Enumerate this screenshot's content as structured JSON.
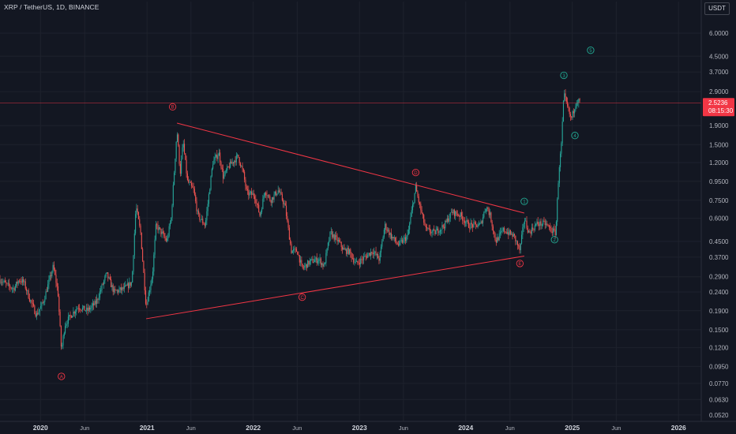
{
  "header": {
    "title": "XRP / TetherUS, 1D, BINANCE",
    "currency": "USDT"
  },
  "colors": {
    "background": "#131722",
    "grid": "#1e222d",
    "bull_candle": "#26a69a",
    "bear_candle": "#ef5350",
    "trendline": "#f23645",
    "wave_abc": "#f23645",
    "wave_impulse": "#22ab94",
    "price_line": "#f23645",
    "axis_text": "#b2b5be"
  },
  "chart_data": {
    "type": "candlestick",
    "timeframe": "1D",
    "scale": "log",
    "y_axis": {
      "ticks": [
        "6.0000",
        "4.5000",
        "3.7000",
        "2.9000",
        "1.9000",
        "1.5000",
        "1.2000",
        "0.9500",
        "0.7500",
        "0.6000",
        "0.4500",
        "0.3700",
        "0.2900",
        "0.2400",
        "0.1900",
        "0.1500",
        "0.1200",
        "0.0950",
        "0.0770",
        "0.0630",
        "0.0520"
      ],
      "range": [
        0.048,
        7.3
      ]
    },
    "x_axis": {
      "labels": [
        "2020",
        "Jun",
        "2021",
        "Jun",
        "2022",
        "Jun",
        "2023",
        "Jun",
        "2024",
        "Jun",
        "2025",
        "Jun",
        "2026"
      ],
      "range": [
        "2019-08-15",
        "2026-03-20"
      ]
    },
    "current_price": {
      "value": "2.5236",
      "countdown": "08:15:30"
    },
    "price_path": [
      [
        "2019-08-15",
        0.28
      ],
      [
        "2019-09-10",
        0.26
      ],
      [
        "2019-10-01",
        0.25
      ],
      [
        "2019-10-20",
        0.28
      ],
      [
        "2019-11-05",
        0.27
      ],
      [
        "2019-11-25",
        0.22
      ],
      [
        "2019-12-18",
        0.18
      ],
      [
        "2020-01-10",
        0.21
      ],
      [
        "2020-02-14",
        0.33
      ],
      [
        "2020-03-01",
        0.24
      ],
      [
        "2020-03-13",
        0.115
      ],
      [
        "2020-03-25",
        0.16
      ],
      [
        "2020-04-15",
        0.18
      ],
      [
        "2020-05-10",
        0.2
      ],
      [
        "2020-06-10",
        0.19
      ],
      [
        "2020-07-10",
        0.21
      ],
      [
        "2020-08-15",
        0.3
      ],
      [
        "2020-09-10",
        0.24
      ],
      [
        "2020-10-15",
        0.25
      ],
      [
        "2020-11-10",
        0.27
      ],
      [
        "2020-11-24",
        0.7
      ],
      [
        "2020-12-10",
        0.5
      ],
      [
        "2020-12-29",
        0.2
      ],
      [
        "2021-01-20",
        0.3
      ],
      [
        "2021-02-01",
        0.55
      ],
      [
        "2021-02-20",
        0.5
      ],
      [
        "2021-03-10",
        0.45
      ],
      [
        "2021-03-25",
        0.6
      ],
      [
        "2021-04-14",
        1.8
      ],
      [
        "2021-04-25",
        1.05
      ],
      [
        "2021-05-05",
        1.55
      ],
      [
        "2021-05-20",
        0.95
      ],
      [
        "2021-06-10",
        0.85
      ],
      [
        "2021-06-25",
        0.62
      ],
      [
        "2021-07-20",
        0.55
      ],
      [
        "2021-08-15",
        1.2
      ],
      [
        "2021-09-05",
        1.35
      ],
      [
        "2021-09-20",
        1.0
      ],
      [
        "2021-10-10",
        1.15
      ],
      [
        "2021-11-10",
        1.3
      ],
      [
        "2021-11-28",
        1.05
      ],
      [
        "2021-12-10",
        0.82
      ],
      [
        "2022-01-05",
        0.8
      ],
      [
        "2022-01-24",
        0.62
      ],
      [
        "2022-02-10",
        0.85
      ],
      [
        "2022-03-01",
        0.75
      ],
      [
        "2022-03-28",
        0.85
      ],
      [
        "2022-04-20",
        0.7
      ],
      [
        "2022-05-12",
        0.4
      ],
      [
        "2022-06-01",
        0.4
      ],
      [
        "2022-06-18",
        0.32
      ],
      [
        "2022-07-15",
        0.35
      ],
      [
        "2022-08-15",
        0.36
      ],
      [
        "2022-09-01",
        0.33
      ],
      [
        "2022-09-23",
        0.5
      ],
      [
        "2022-10-20",
        0.45
      ],
      [
        "2022-11-10",
        0.4
      ],
      [
        "2022-11-25",
        0.4
      ],
      [
        "2022-12-20",
        0.34
      ],
      [
        "2023-01-10",
        0.36
      ],
      [
        "2023-02-15",
        0.4
      ],
      [
        "2023-03-10",
        0.36
      ],
      [
        "2023-03-29",
        0.55
      ],
      [
        "2023-04-20",
        0.48
      ],
      [
        "2023-05-15",
        0.43
      ],
      [
        "2023-06-15",
        0.48
      ],
      [
        "2023-07-13",
        0.88
      ],
      [
        "2023-07-25",
        0.72
      ],
      [
        "2023-08-17",
        0.52
      ],
      [
        "2023-09-15",
        0.5
      ],
      [
        "2023-10-20",
        0.55
      ],
      [
        "2023-11-15",
        0.65
      ],
      [
        "2023-12-15",
        0.62
      ],
      [
        "2024-01-10",
        0.55
      ],
      [
        "2024-02-20",
        0.55
      ],
      [
        "2024-03-11",
        0.7
      ],
      [
        "2024-03-25",
        0.62
      ],
      [
        "2024-04-13",
        0.45
      ],
      [
        "2024-05-10",
        0.52
      ],
      [
        "2024-06-15",
        0.48
      ],
      [
        "2024-07-05",
        0.4
      ],
      [
        "2024-07-20",
        0.6
      ],
      [
        "2024-08-05",
        0.5
      ],
      [
        "2024-09-01",
        0.56
      ],
      [
        "2024-10-01",
        0.56
      ],
      [
        "2024-10-20",
        0.52
      ],
      [
        "2024-11-05",
        0.5
      ],
      [
        "2024-11-16",
        1.1
      ],
      [
        "2024-11-24",
        1.45
      ],
      [
        "2024-12-03",
        2.8
      ],
      [
        "2024-12-15",
        2.4
      ],
      [
        "2024-12-28",
        2.05
      ],
      [
        "2025-01-15",
        2.6
      ],
      [
        "2025-01-28",
        2.55
      ]
    ],
    "trendlines": [
      {
        "from": [
          "2021-04-14",
          1.96
        ],
        "to": [
          "2024-07-20",
          0.64
        ]
      },
      {
        "from": [
          "2020-12-29",
          0.172
        ],
        "to": [
          "2024-07-20",
          0.375
        ]
      }
    ],
    "wave_labels": [
      {
        "text": "A",
        "date": "2020-03-13",
        "price": 0.084,
        "group": "abc"
      },
      {
        "text": "B",
        "date": "2021-03-30",
        "price": 2.4,
        "group": "abc"
      },
      {
        "text": "C",
        "date": "2022-06-18",
        "price": 0.225,
        "group": "abc"
      },
      {
        "text": "D",
        "date": "2023-07-13",
        "price": 1.06,
        "group": "abc"
      },
      {
        "text": "E",
        "date": "2024-07-05",
        "price": 0.342,
        "group": "abc"
      },
      {
        "text": "1",
        "date": "2024-07-20",
        "price": 0.74,
        "group": "impulse"
      },
      {
        "text": "2",
        "date": "2024-11-01",
        "price": 0.46,
        "group": "impulse"
      },
      {
        "text": "3",
        "date": "2024-12-03",
        "price": 3.55,
        "group": "impulse"
      },
      {
        "text": "4",
        "date": "2025-01-10",
        "price": 1.68,
        "group": "impulse"
      },
      {
        "text": "5",
        "date": "2025-03-05",
        "price": 4.85,
        "group": "impulse"
      }
    ]
  }
}
